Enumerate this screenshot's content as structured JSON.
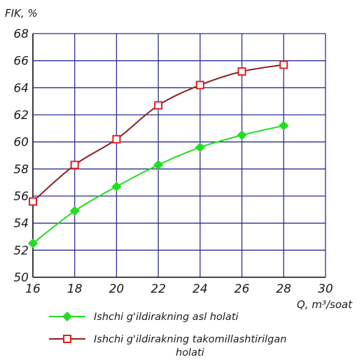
{
  "chart_data": {
    "type": "line",
    "ylabel": "FIK, %",
    "xlabel": "Q, m³/soat",
    "xlim": [
      16,
      30
    ],
    "ylim": [
      50,
      68
    ],
    "x_ticks": [
      "16",
      "18",
      "20",
      "22",
      "24",
      "26",
      "28",
      "30"
    ],
    "y_ticks": [
      "50",
      "52",
      "54",
      "56",
      "58",
      "60",
      "62",
      "64",
      "66",
      "68"
    ],
    "grid": true,
    "legend_position": "bottom",
    "series": [
      {
        "name": "Ishchi g'ildirakning asl holati",
        "color": "#22dd22",
        "marker": "diamond",
        "x": [
          16,
          18,
          20,
          22,
          24,
          26,
          28
        ],
        "values": [
          52.5,
          54.9,
          56.7,
          58.3,
          59.6,
          60.5,
          61.2
        ]
      },
      {
        "name": "Ishchi g'ildirakning takomillashtirilgan holati",
        "name_lines": [
          "Ishchi g'ildirakning takomillashtirilgan",
          "holati"
        ],
        "color": "#e02020",
        "line_color": "#8b2020",
        "marker": "square",
        "x": [
          16,
          18,
          20,
          22,
          24,
          26,
          28
        ],
        "values": [
          55.6,
          58.3,
          60.2,
          62.7,
          64.2,
          65.2,
          65.7
        ]
      }
    ]
  }
}
